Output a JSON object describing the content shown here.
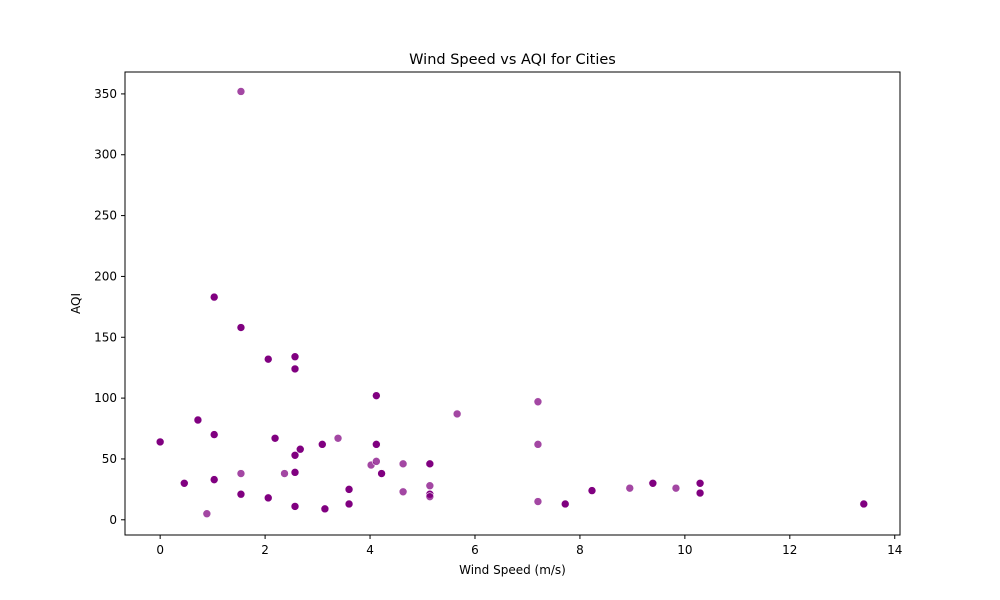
{
  "chart_data": {
    "type": "scatter",
    "title": "Wind Speed vs AQI for Cities",
    "xlabel": "Wind Speed (m/s)",
    "ylabel": "AQI",
    "xlim": [
      -0.67,
      14.1
    ],
    "ylim": [
      -12.5,
      368
    ],
    "xticks": [
      0,
      2,
      4,
      6,
      8,
      10,
      12,
      14
    ],
    "yticks": [
      0,
      50,
      100,
      150,
      200,
      250,
      300,
      350
    ],
    "grid": false,
    "legend": "none",
    "marker_color": "#800080",
    "x": [
      1.54,
      1.03,
      1.54,
      2.06,
      2.57,
      2.57,
      4.12,
      0.72,
      1.03,
      2.19,
      2.67,
      0.0,
      3.09,
      4.12,
      2.57,
      2.57,
      4.22,
      1.03,
      0.46,
      3.6,
      1.54,
      2.06,
      3.6,
      2.57,
      3.14,
      0.89,
      1.54,
      2.37,
      3.39,
      4.02,
      4.12,
      4.63,
      4.63,
      5.14,
      5.14,
      5.14,
      5.14,
      5.66,
      7.2,
      7.2,
      7.2,
      7.72,
      8.23,
      8.95,
      9.39,
      9.83,
      10.29,
      10.29,
      13.41
    ],
    "y": [
      352,
      183,
      158,
      132,
      134,
      124,
      102,
      82,
      70,
      67,
      58,
      64,
      62,
      62,
      53,
      39,
      38,
      33,
      30,
      25,
      21,
      18,
      13,
      11,
      9,
      5,
      38,
      38,
      67,
      45,
      48,
      46,
      23,
      46,
      28,
      21,
      19,
      87,
      97,
      62,
      15,
      13,
      24,
      26,
      30,
      26,
      30,
      22,
      13
    ],
    "alpha": [
      0.72,
      1,
      1,
      1,
      1,
      1,
      1,
      1,
      1,
      1,
      1,
      1,
      1,
      1,
      1,
      1,
      1,
      1,
      1,
      1,
      1,
      1,
      1,
      1,
      1,
      0.72,
      0.72,
      0.72,
      0.72,
      0.72,
      0.72,
      0.72,
      0.72,
      1,
      0.72,
      1,
      0.72,
      0.72,
      0.72,
      0.72,
      0.72,
      1,
      1,
      0.72,
      1,
      0.72,
      1,
      1,
      1
    ]
  }
}
